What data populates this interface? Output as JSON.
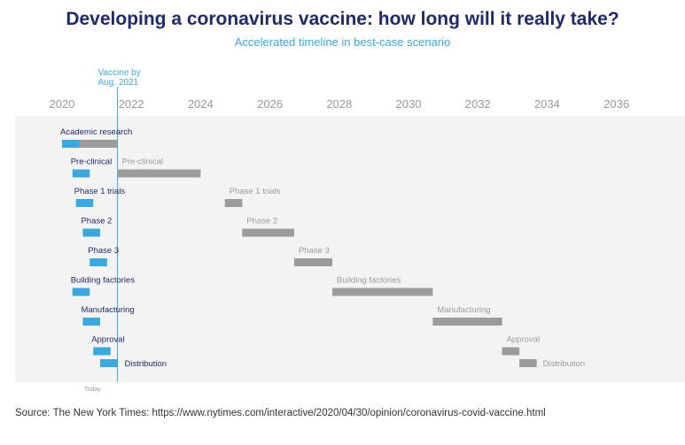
{
  "title": "Developing a coronavirus vaccine: how long will it really take?",
  "subtitle": "Accelerated timeline in best-case scenario",
  "source": "Source: The New York Times: https://www.nytimes.com/interactive/2020/04/30/opinion/coronavirus-covid-vaccine.html",
  "colors": {
    "accelerated": "#3aa7df",
    "traditional": "#9b9b9b",
    "title": "#1f2a6b",
    "stage_label": "#1f2a6b",
    "panel": "#f3f3f3"
  },
  "chart_data": {
    "type": "gantt",
    "title": "Developing a coronavirus vaccine: how long will it really take?",
    "subtitle": "Accelerated timeline in best-case scenario",
    "x_range": [
      2020,
      2037
    ],
    "x_ticks": [
      2020,
      2022,
      2024,
      2026,
      2028,
      2030,
      2032,
      2034,
      2036
    ],
    "marker": {
      "label": "Vaccine by Aug. 2021",
      "x": 2021.6
    },
    "today_label": "Today",
    "stages": [
      {
        "label": "Academic research",
        "accelerated": [
          2020.0,
          2020.5
        ],
        "traditional": [
          2020.5,
          2021.6
        ],
        "traditional_label": ""
      },
      {
        "label": "Pre-clinical",
        "accelerated": [
          2020.3,
          2020.8
        ],
        "traditional": [
          2021.6,
          2024.0
        ],
        "traditional_label": "Pre-clinical"
      },
      {
        "label": "Phase 1 trials",
        "accelerated": [
          2020.4,
          2020.9
        ],
        "traditional": [
          2024.7,
          2025.2
        ],
        "traditional_label": "Phase 1 trials"
      },
      {
        "label": "Phase 2",
        "accelerated": [
          2020.6,
          2021.1
        ],
        "traditional": [
          2025.2,
          2026.7
        ],
        "traditional_label": "Phase 2"
      },
      {
        "label": "Phase 3",
        "accelerated": [
          2020.8,
          2021.3
        ],
        "traditional": [
          2026.7,
          2027.8
        ],
        "traditional_label": "Phase 3"
      },
      {
        "label": "Building factories",
        "accelerated": [
          2020.3,
          2020.8
        ],
        "traditional": [
          2027.8,
          2030.7
        ],
        "traditional_label": "Building factories"
      },
      {
        "label": "Manufacturing",
        "accelerated": [
          2020.6,
          2021.1
        ],
        "traditional": [
          2030.7,
          2032.7
        ],
        "traditional_label": "Manufacturing"
      },
      {
        "label": "Approval",
        "accelerated": [
          2020.9,
          2021.4
        ],
        "traditional": [
          2032.7,
          2033.2
        ],
        "traditional_label": "Approval"
      },
      {
        "label": "Distribution",
        "accelerated": [
          2021.1,
          2021.6
        ],
        "traditional": [
          2033.2,
          2033.7
        ],
        "traditional_label": "Distribution"
      }
    ]
  }
}
